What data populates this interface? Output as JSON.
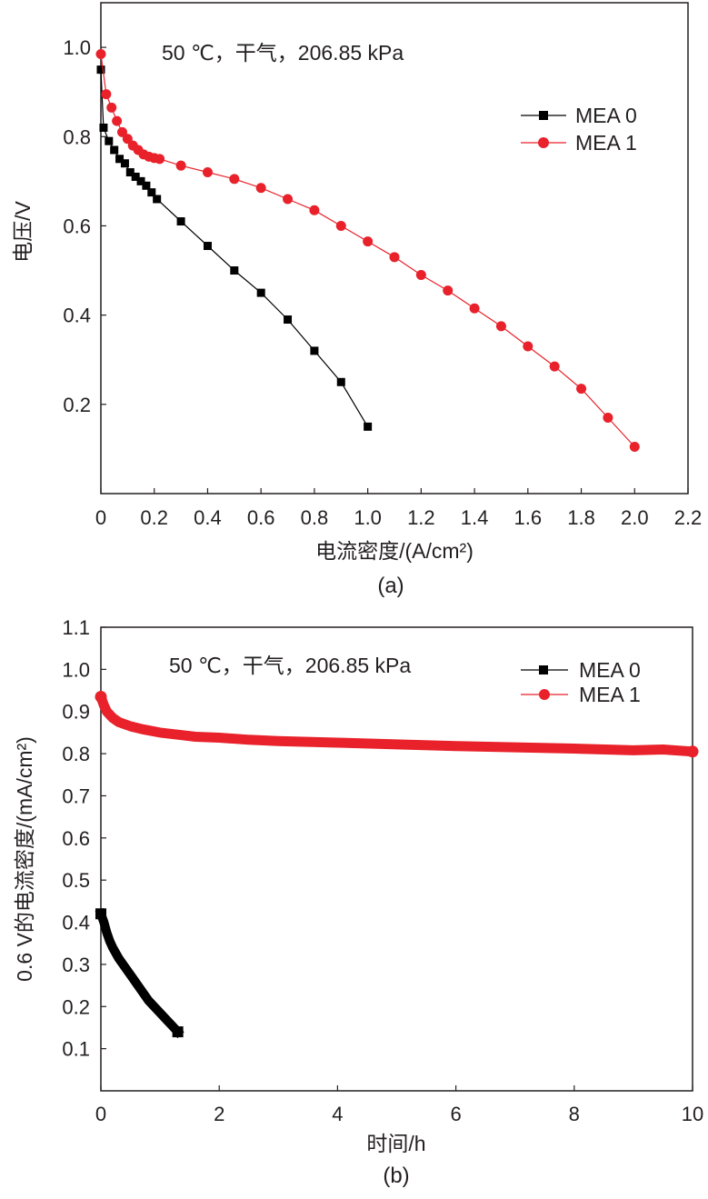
{
  "chart_data": [
    {
      "type": "line",
      "panel_label": "(a)",
      "annotation": "50 ℃，干气，206.85 kPa",
      "xlabel": "电流密度/(A/cm²)",
      "ylabel": "电压/V",
      "xlim": [
        0,
        2.2
      ],
      "ylim": [
        0,
        1.1
      ],
      "xticks": [
        "0",
        "0.2",
        "0.4",
        "0.6",
        "0.8",
        "1.0",
        "1.2",
        "1.4",
        "1.6",
        "1.8",
        "2.0",
        "2.2"
      ],
      "xtick_values": [
        0,
        0.2,
        0.4,
        0.6,
        0.8,
        1.0,
        1.2,
        1.4,
        1.6,
        1.8,
        2.0,
        2.2
      ],
      "yticks": [
        "0.2",
        "0.4",
        "0.6",
        "0.8",
        "1.0"
      ],
      "ytick_values": [
        0.2,
        0.4,
        0.6,
        0.8,
        1.0
      ],
      "legend_position": "top-right",
      "series": [
        {
          "name": "MEA 0",
          "color": "#000000",
          "marker": "square",
          "x": [
            0.0,
            0.01,
            0.03,
            0.05,
            0.07,
            0.09,
            0.11,
            0.13,
            0.15,
            0.17,
            0.19,
            0.21,
            0.3,
            0.4,
            0.5,
            0.6,
            0.7,
            0.8,
            0.9,
            1.0
          ],
          "y": [
            0.95,
            0.82,
            0.79,
            0.77,
            0.75,
            0.74,
            0.72,
            0.71,
            0.7,
            0.69,
            0.675,
            0.66,
            0.61,
            0.555,
            0.5,
            0.45,
            0.39,
            0.32,
            0.25,
            0.15
          ]
        },
        {
          "name": "MEA 1",
          "color": "#e8212a",
          "marker": "circle",
          "x": [
            0.0,
            0.02,
            0.04,
            0.06,
            0.08,
            0.1,
            0.12,
            0.14,
            0.16,
            0.18,
            0.2,
            0.22,
            0.3,
            0.4,
            0.5,
            0.6,
            0.7,
            0.8,
            0.9,
            1.0,
            1.1,
            1.2,
            1.3,
            1.4,
            1.5,
            1.6,
            1.7,
            1.8,
            1.9,
            2.0
          ],
          "y": [
            0.985,
            0.895,
            0.865,
            0.835,
            0.81,
            0.795,
            0.78,
            0.77,
            0.76,
            0.755,
            0.752,
            0.75,
            0.735,
            0.72,
            0.705,
            0.685,
            0.66,
            0.635,
            0.6,
            0.565,
            0.53,
            0.49,
            0.455,
            0.415,
            0.375,
            0.33,
            0.285,
            0.235,
            0.17,
            0.105
          ]
        }
      ]
    },
    {
      "type": "line",
      "panel_label": "(b)",
      "annotation": "50 ℃，干气，206.85 kPa",
      "xlabel": "时间/h",
      "ylabel": "0.6 V的电流密度/(mA/cm²)",
      "xlim": [
        0,
        10
      ],
      "ylim": [
        0,
        1.1
      ],
      "xticks": [
        "0",
        "2",
        "4",
        "6",
        "8",
        "10"
      ],
      "xtick_values": [
        0,
        2,
        4,
        6,
        8,
        10
      ],
      "yticks": [
        "0.1",
        "0.2",
        "0.3",
        "0.4",
        "0.5",
        "0.6",
        "0.7",
        "0.8",
        "0.9",
        "1.0",
        "1.1"
      ],
      "ytick_values": [
        0.1,
        0.2,
        0.3,
        0.4,
        0.5,
        0.6,
        0.7,
        0.8,
        0.9,
        1.0,
        1.1
      ],
      "legend_position": "top-right",
      "series": [
        {
          "name": "MEA 0",
          "color": "#000000",
          "marker": "square",
          "x": [
            0.0,
            0.05,
            0.1,
            0.15,
            0.2,
            0.3,
            0.4,
            0.5,
            0.6,
            0.7,
            0.8,
            0.9,
            1.0,
            1.1,
            1.2,
            1.3
          ],
          "y": [
            0.42,
            0.4,
            0.375,
            0.355,
            0.34,
            0.315,
            0.295,
            0.275,
            0.255,
            0.235,
            0.215,
            0.2,
            0.185,
            0.17,
            0.155,
            0.14
          ]
        },
        {
          "name": "MEA 1",
          "color": "#e8212a",
          "marker": "circle",
          "x": [
            0.0,
            0.05,
            0.1,
            0.2,
            0.3,
            0.5,
            0.7,
            1.0,
            1.3,
            1.6,
            2.0,
            2.5,
            3.0,
            3.5,
            4.0,
            5.0,
            6.0,
            7.0,
            8.0,
            9.0,
            9.5,
            10.0
          ],
          "y": [
            0.935,
            0.915,
            0.9,
            0.885,
            0.875,
            0.865,
            0.858,
            0.85,
            0.845,
            0.84,
            0.838,
            0.833,
            0.83,
            0.828,
            0.826,
            0.822,
            0.818,
            0.815,
            0.812,
            0.808,
            0.81,
            0.805
          ]
        }
      ]
    }
  ]
}
